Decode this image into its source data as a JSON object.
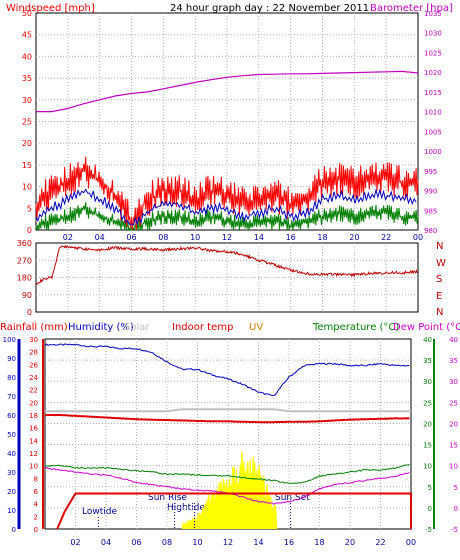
{
  "header": {
    "windspeed_label": "Windspeed [mph]",
    "title": "24 hour graph day : 22 November 2011",
    "barometer_label": "Barometer [hpa]"
  },
  "colors": {
    "windspeed": "#ff0000",
    "wind_average": "#0000c0",
    "wind_low": "#008000",
    "barometer": "#c000c0",
    "direction": "#c00000",
    "humidity": "#0000c0",
    "solar": "#c0c0c0",
    "indoor_temp": "#e00000",
    "uv": "#d08000",
    "temperature": "#008000",
    "dew_point": "#d000d0",
    "rainfall": "#e00000",
    "sun_fill": "#ffff00",
    "tide_dots": "#00008b"
  },
  "x_tick_labels": [
    "02",
    "04",
    "06",
    "08",
    "10",
    "12",
    "14",
    "16",
    "18",
    "20",
    "22",
    "00"
  ],
  "chart_data": [
    {
      "type": "line",
      "title": "24 hour graph day : 22 November 2011",
      "ylabel": "Windspeed [mph]",
      "y2label": "Barometer [hpa]",
      "ylim": [
        0,
        50
      ],
      "y2lim": [
        980,
        1035
      ],
      "grid": true,
      "y_ticks": [
        "0",
        "5",
        "10",
        "15",
        "20",
        "25",
        "30",
        "35",
        "40",
        "45",
        "50"
      ],
      "y2_ticks": [
        "980",
        "985",
        "990",
        "995",
        "1000",
        "1005",
        "1010",
        "1015",
        "1020",
        "1025",
        "1030",
        "1035"
      ],
      "x_hours": [
        0,
        1,
        2,
        3,
        4,
        5,
        6,
        7,
        8,
        9,
        10,
        11,
        12,
        13,
        14,
        15,
        16,
        17,
        18,
        19,
        20,
        21,
        22,
        23,
        24
      ],
      "series": [
        {
          "values": [
            6,
            9,
            11,
            14,
            11,
            8,
            2,
            7,
            9,
            9,
            7,
            9,
            8,
            6,
            7,
            8,
            6,
            7,
            11,
            12,
            11,
            12,
            12,
            11,
            11
          ]
        },
        {
          "values": [
            3,
            5,
            7,
            9,
            7,
            5,
            1,
            4,
            6,
            6,
            4,
            5,
            5,
            3,
            4,
            5,
            3,
            4,
            7,
            8,
            7,
            8,
            8,
            7,
            7
          ]
        },
        {
          "values": [
            1,
            2,
            3,
            5,
            3,
            2,
            0,
            2,
            3,
            3,
            2,
            3,
            2,
            1,
            2,
            2,
            1,
            2,
            3,
            4,
            3,
            4,
            4,
            3,
            3
          ]
        },
        {
          "axis": "y2",
          "values": [
            1010.0,
            1010.0,
            1010.8,
            1012.0,
            1013.0,
            1014.0,
            1014.6,
            1015.0,
            1015.8,
            1016.6,
            1017.4,
            1018.1,
            1018.7,
            1019.1,
            1019.4,
            1019.5,
            1019.6,
            1019.6,
            1019.7,
            1019.8,
            1019.9,
            1020.0,
            1020.1,
            1020.2,
            1019.8
          ]
        }
      ]
    },
    {
      "type": "line",
      "ylim": [
        0,
        360
      ],
      "y_ticks": [
        "0",
        "90",
        "180",
        "270",
        "360"
      ],
      "compass_labels": [
        "N",
        "W",
        "S",
        "E",
        "N"
      ],
      "x_hours": [
        0,
        0.5,
        1.0,
        1.5,
        2,
        3,
        4,
        5,
        6,
        7,
        8,
        9,
        10,
        11,
        12,
        13,
        14,
        15,
        16,
        17,
        18,
        19,
        20,
        21,
        22,
        23,
        24
      ],
      "series": [
        {
          "values": [
            150,
            170,
            180,
            340,
            340,
            330,
            325,
            335,
            330,
            330,
            325,
            330,
            335,
            320,
            315,
            300,
            270,
            245,
            220,
            200,
            195,
            195,
            195,
            200,
            205,
            205,
            210
          ]
        }
      ]
    },
    {
      "type": "line",
      "legend": [
        "Rainfall (mm)",
        "Humidity (%)",
        "Solar",
        "Indoor temp",
        "UV",
        "Temperature (°C)",
        "Dew Point (°C)"
      ],
      "humidity_ylim": [
        0,
        100
      ],
      "humidity_ticks": [
        "0",
        "10",
        "20",
        "30",
        "40",
        "50",
        "60",
        "70",
        "80",
        "90",
        "100"
      ],
      "rain_ylim": [
        0,
        30
      ],
      "rain_ticks": [
        "0",
        "2",
        "4",
        "6",
        "8",
        "10",
        "12",
        "14",
        "16",
        "18",
        "20",
        "22",
        "24",
        "26",
        "28",
        "30"
      ],
      "temperature_ylim": [
        -5,
        40
      ],
      "temperature_ticks": [
        "-5",
        "0",
        "5",
        "10",
        "15",
        "20",
        "25",
        "30",
        "35",
        "40"
      ],
      "x_hours": [
        0,
        1,
        2,
        3,
        4,
        5,
        6,
        7,
        8,
        9,
        10,
        11,
        12,
        13,
        14,
        15,
        16,
        17,
        18,
        19,
        20,
        21,
        22,
        23,
        24
      ],
      "series": [
        {
          "name": "Humidity (%)",
          "values": [
            97,
            97,
            97,
            96,
            96,
            95,
            95,
            93,
            88,
            84,
            84,
            81,
            79,
            76,
            72,
            70,
            80,
            86,
            87,
            87,
            86,
            86,
            87,
            86,
            86
          ]
        },
        {
          "name": "Indoor temp",
          "axis": "temperature",
          "values": [
            22,
            22,
            21.8,
            21.6,
            21.4,
            21.2,
            21.0,
            20.9,
            20.8,
            20.7,
            20.6,
            20.5,
            20.5,
            20.4,
            20.3,
            20.3,
            20.4,
            20.4,
            20.5,
            20.7,
            20.9,
            21.0,
            21.1,
            21.2,
            21.2
          ]
        },
        {
          "name": "Temperature (°C)",
          "axis": "temperature",
          "values": [
            10,
            10,
            9.5,
            9.5,
            9.5,
            9.2,
            8.8,
            8.5,
            8.0,
            8.0,
            7.8,
            7.6,
            7.6,
            7.2,
            6.8,
            6.5,
            5.8,
            6.0,
            7.5,
            8.0,
            8.5,
            9.0,
            9.0,
            9.5,
            10.5
          ]
        },
        {
          "name": "Dew Point (°C)",
          "axis": "temperature",
          "values": [
            9.5,
            9.0,
            8.5,
            8.0,
            7.8,
            7.0,
            6.0,
            5.5,
            5.0,
            4.5,
            4.2,
            4.0,
            3.5,
            2.5,
            1.5,
            1.0,
            1.5,
            2.5,
            4.5,
            5.5,
            6.0,
            6.5,
            7.0,
            7.5,
            8.5
          ]
        },
        {
          "name": "Rainfall (mm)",
          "values": [
            0,
            0,
            2.8,
            5.6,
            5.6,
            5.6,
            5.6,
            5.6,
            5.6,
            5.6,
            5.6,
            5.6,
            5.6,
            5.6,
            5.6,
            5.6,
            5.6,
            5.6,
            5.6,
            5.6,
            5.6,
            5.6,
            5.6,
            5.6,
            5.6
          ]
        },
        {
          "name": "Solar",
          "values": [
            0,
            0,
            0,
            0,
            0,
            0,
            0,
            0,
            0,
            2,
            5,
            15,
            20,
            30,
            25,
            10,
            0,
            0,
            0,
            0,
            0,
            0,
            0,
            0,
            0
          ]
        }
      ],
      "annotations": [
        "Lowtide",
        "Sun Rise",
        "Hightide",
        "Sun Set"
      ]
    }
  ]
}
